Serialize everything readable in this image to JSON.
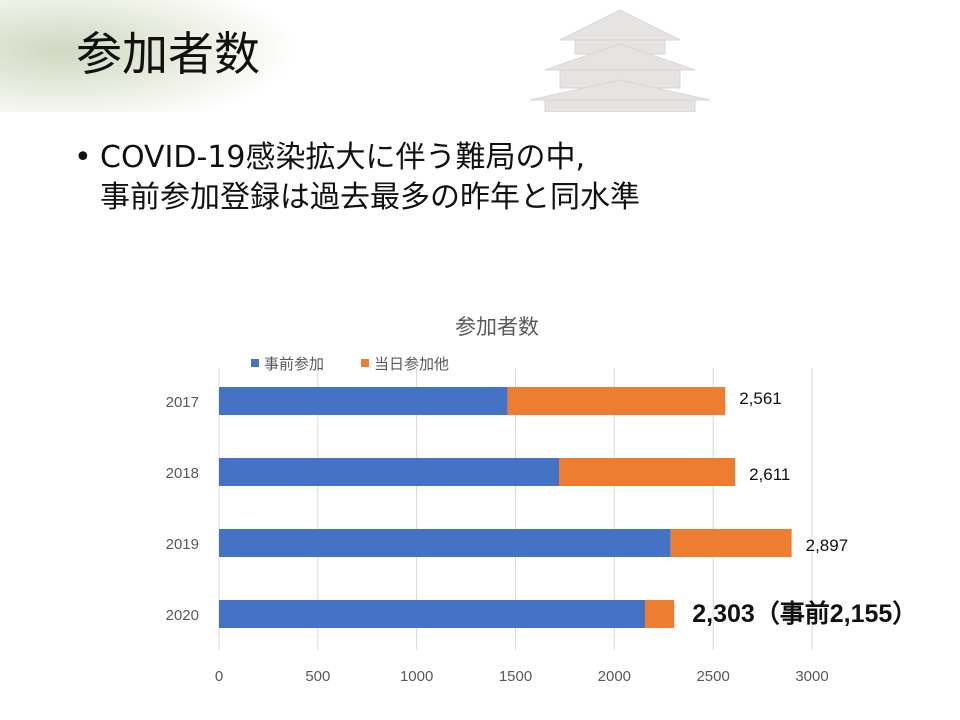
{
  "slide": {
    "title": "参加者数",
    "bullet_line1": "COVID-19感染拡大に伴う難局の中,",
    "bullet_line2": "事前参加登録は過去最多の昨年と同水準"
  },
  "colors": {
    "pre_registration": "#4472C4",
    "same_day": "#ED7D31",
    "grid": "#D9D9D9",
    "axis_text": "#595959"
  },
  "chart_data": {
    "type": "bar",
    "orientation": "horizontal",
    "stacked": true,
    "title": "参加者数",
    "categories": [
      "2017",
      "2018",
      "2019",
      "2020"
    ],
    "series": [
      {
        "name": "事前参加",
        "values": [
          1460,
          1720,
          2285,
          2155
        ]
      },
      {
        "name": "当日参加他",
        "values": [
          1101,
          891,
          612,
          148
        ]
      }
    ],
    "totals_labels": [
      "2,561",
      "2,611",
      "2,897",
      "2,303（事前2,155）"
    ],
    "xlim": [
      0,
      3000
    ],
    "xticks": [
      "0",
      "500",
      "1000",
      "1500",
      "2000",
      "2500",
      "3000"
    ],
    "grid": true,
    "legend": "top-left"
  }
}
